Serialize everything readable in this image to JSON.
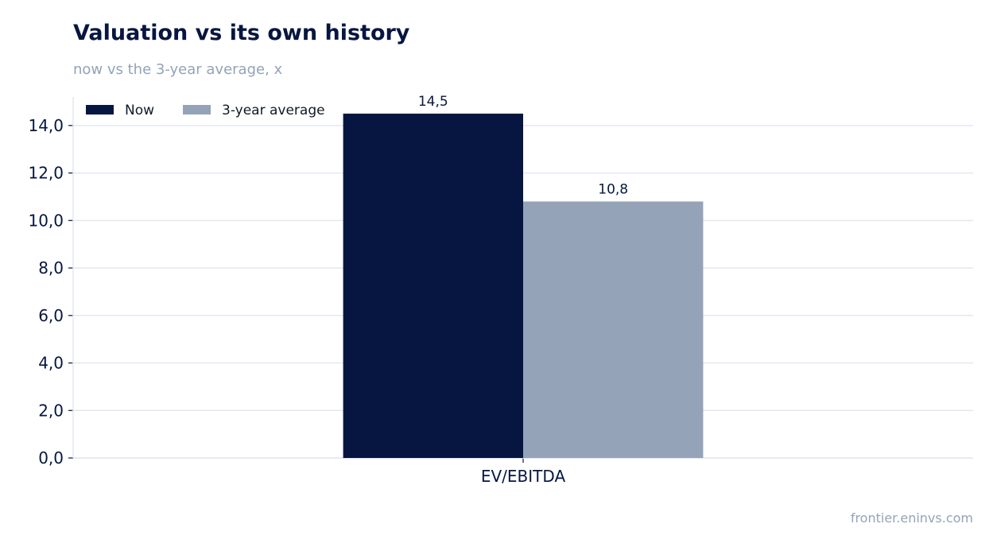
{
  "title": "Valuation vs its own history",
  "subtitle": "now vs the 3-year average, x",
  "footer": "frontier.eninvs.com",
  "colors": {
    "now": "#061640",
    "average": "#94a3b8",
    "grid": "#e2e8f0",
    "axis_text": "#061640",
    "muted_text": "#94a3b8"
  },
  "chart_data": {
    "type": "bar",
    "categories": [
      "EV/EBITDA"
    ],
    "series": [
      {
        "name": "Now",
        "values": [
          14.5
        ],
        "labels": [
          "14,5"
        ]
      },
      {
        "name": "3-year average",
        "values": [
          10.8
        ],
        "labels": [
          "10,8"
        ]
      }
    ],
    "title": "Valuation vs its own history",
    "subtitle": "now vs the 3-year average, x",
    "xlabel": "",
    "ylabel": "",
    "ylim": [
      0,
      15.2
    ],
    "yticks": [
      0,
      2,
      4,
      6,
      8,
      10,
      12,
      14
    ],
    "ytick_labels": [
      "0,0",
      "2,0",
      "4,0",
      "6,0",
      "8,0",
      "10,0",
      "12,0",
      "14,0"
    ],
    "grid": true,
    "legend_position": "top-left"
  }
}
